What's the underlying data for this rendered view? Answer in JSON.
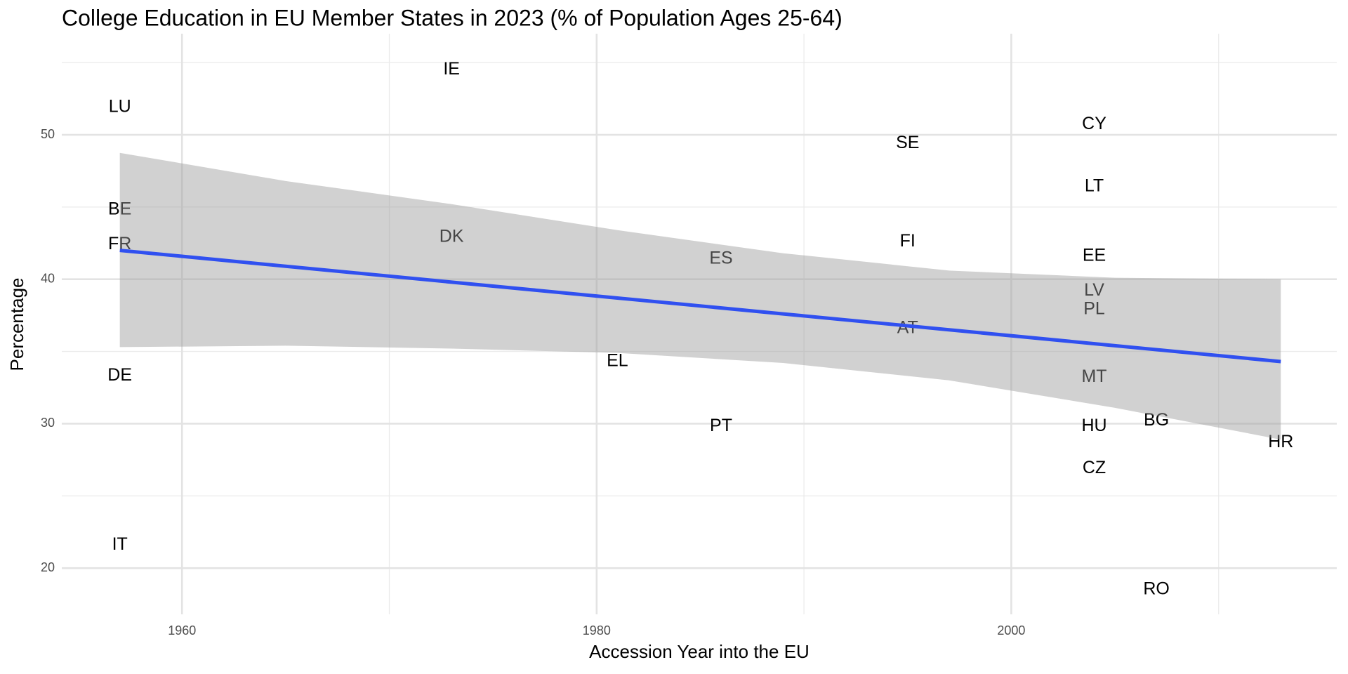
{
  "chart_data": {
    "type": "scatter",
    "title": "College Education in EU Member States in 2023 (% of Population Ages 25-64)",
    "x_label": "Accession Year into the EU",
    "y_label": "Percentage",
    "labels": [
      "LU",
      "IE",
      "BE",
      "FR",
      "DE",
      "IT",
      "DK",
      "EL",
      "ES",
      "PT",
      "SE",
      "FI",
      "AT",
      "CY",
      "LT",
      "EE",
      "LV",
      "PL",
      "MT",
      "HU",
      "CZ",
      "BG",
      "RO",
      "HR"
    ],
    "x": [
      1957,
      1973,
      1957,
      1957,
      1957,
      1957,
      1973,
      1981,
      1986,
      1986,
      1995,
      1995,
      1995,
      2004,
      2004,
      2004,
      2004,
      2004,
      2004,
      2004,
      2004,
      2007,
      2007,
      2013
    ],
    "values": [
      51.9,
      54.5,
      44.8,
      42.4,
      33.3,
      21.6,
      42.9,
      34.3,
      41.4,
      29.8,
      49.4,
      42.6,
      36.6,
      50.7,
      46.4,
      41.6,
      39.2,
      37.9,
      33.2,
      29.8,
      26.9,
      30.2,
      18.5,
      28.7
    ],
    "label_color": "#000000",
    "trend": {
      "x": [
        1957,
        1965,
        1973,
        1981,
        1989,
        1997,
        2005,
        2013
      ],
      "values": [
        42.0,
        40.9,
        39.8,
        38.7,
        37.6,
        36.5,
        35.4,
        34.3
      ],
      "lower": [
        35.3,
        35.4,
        35.2,
        34.9,
        34.2,
        33.0,
        31.1,
        28.9
      ],
      "upper": [
        48.75,
        46.8,
        45.2,
        43.4,
        41.8,
        40.6,
        40.1,
        40.0
      ],
      "color": "#3050f0",
      "band_color": "#999999"
    },
    "xlim": [
      1954.2,
      2015.7
    ],
    "ylim": [
      16.8,
      57
    ],
    "xticks": [
      1960,
      1980,
      2000
    ],
    "yticks": [
      20,
      30,
      40,
      50
    ],
    "x_minor_ticks": [
      1970,
      1990,
      2010
    ],
    "y_minor_ticks": [
      25,
      35,
      45,
      55
    ],
    "grid": true
  }
}
